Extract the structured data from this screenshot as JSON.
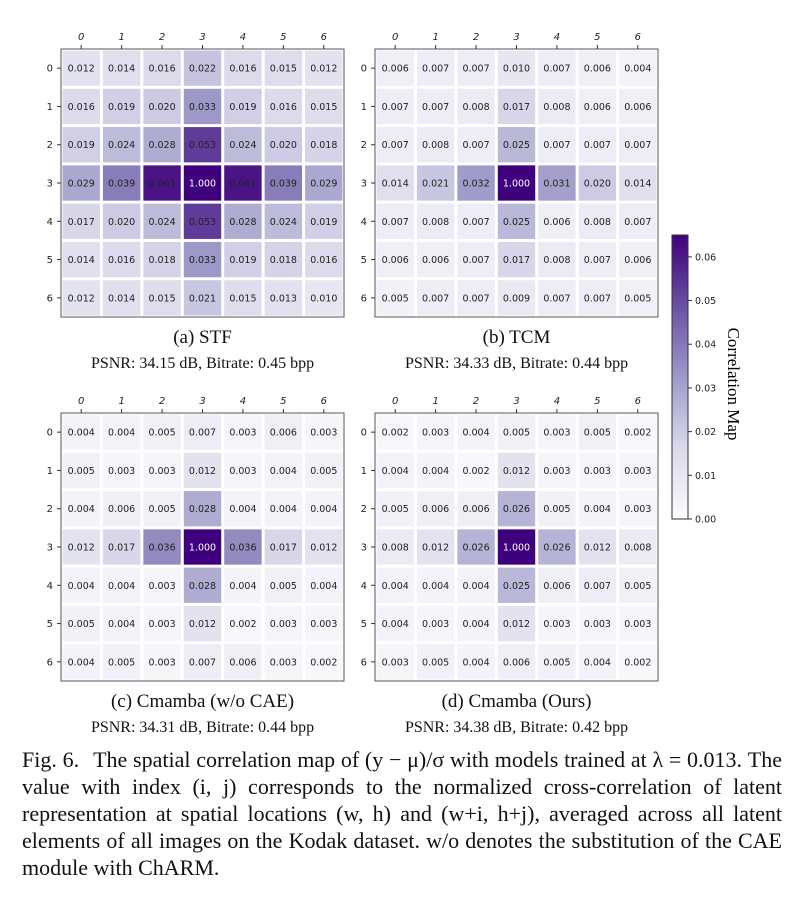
{
  "figure": {
    "caption_label": "Fig. 6.",
    "caption_text": "The spatial correlation map of (y − μ)/σ with models trained at λ = 0.013. The value with index (i, j) corresponds to the normalized cross-correlation of latent representation at spatial locations (w, h) and (w+i, h+j), averaged across all latent elements of all images on the Kodak dataset. w/o denotes the substitution of the CAE module with ChARM."
  },
  "colorbar": {
    "label": "Correlation Map",
    "ticks": [
      "0.00",
      "0.01",
      "0.02",
      "0.03",
      "0.04",
      "0.05",
      "0.06"
    ],
    "range": [
      0,
      0.065
    ],
    "colors": {
      "low": "#fcfbfd",
      "mid": "#9e9ac8",
      "high": "#3f007d"
    }
  },
  "chart_data": [
    {
      "type": "heatmap",
      "title": "(a) STF",
      "subtitle": "PSNR: 34.15 dB, Bitrate: 0.45 bpp",
      "x_ticks": [
        "0",
        "1",
        "2",
        "3",
        "4",
        "5",
        "6"
      ],
      "y_ticks": [
        "0",
        "1",
        "2",
        "3",
        "4",
        "5",
        "6"
      ],
      "values": [
        [
          "0.012",
          "0.014",
          "0.016",
          "0.022",
          "0.016",
          "0.015",
          "0.012"
        ],
        [
          "0.016",
          "0.019",
          "0.020",
          "0.033",
          "0.019",
          "0.016",
          "0.015"
        ],
        [
          "0.019",
          "0.024",
          "0.028",
          "0.053",
          "0.024",
          "0.020",
          "0.018"
        ],
        [
          "0.029",
          "0.039",
          "0.061",
          "1.000",
          "0.061",
          "0.039",
          "0.029"
        ],
        [
          "0.017",
          "0.020",
          "0.024",
          "0.053",
          "0.028",
          "0.024",
          "0.019"
        ],
        [
          "0.014",
          "0.016",
          "0.018",
          "0.033",
          "0.019",
          "0.018",
          "0.016"
        ],
        [
          "0.012",
          "0.014",
          "0.015",
          "0.021",
          "0.015",
          "0.013",
          "0.010"
        ]
      ]
    },
    {
      "type": "heatmap",
      "title": "(b) TCM",
      "subtitle": "PSNR: 34.33 dB, Bitrate: 0.44 bpp",
      "x_ticks": [
        "0",
        "1",
        "2",
        "3",
        "4",
        "5",
        "6"
      ],
      "y_ticks": [
        "0",
        "1",
        "2",
        "3",
        "4",
        "5",
        "6"
      ],
      "values": [
        [
          "0.006",
          "0.007",
          "0.007",
          "0.010",
          "0.007",
          "0.006",
          "0.004"
        ],
        [
          "0.007",
          "0.007",
          "0.008",
          "0.017",
          "0.008",
          "0.006",
          "0.006"
        ],
        [
          "0.007",
          "0.008",
          "0.007",
          "0.025",
          "0.007",
          "0.007",
          "0.007"
        ],
        [
          "0.014",
          "0.021",
          "0.032",
          "1.000",
          "0.031",
          "0.020",
          "0.014"
        ],
        [
          "0.007",
          "0.008",
          "0.007",
          "0.025",
          "0.006",
          "0.008",
          "0.007"
        ],
        [
          "0.006",
          "0.006",
          "0.007",
          "0.017",
          "0.008",
          "0.007",
          "0.006"
        ],
        [
          "0.005",
          "0.007",
          "0.007",
          "0.009",
          "0.007",
          "0.007",
          "0.005"
        ]
      ]
    },
    {
      "type": "heatmap",
      "title": "(c) Cmamba (w/o CAE)",
      "subtitle": "PSNR: 34.31 dB, Bitrate: 0.44 bpp",
      "x_ticks": [
        "0",
        "1",
        "2",
        "3",
        "4",
        "5",
        "6"
      ],
      "y_ticks": [
        "0",
        "1",
        "2",
        "3",
        "4",
        "5",
        "6"
      ],
      "values": [
        [
          "0.004",
          "0.004",
          "0.005",
          "0.007",
          "0.003",
          "0.006",
          "0.003"
        ],
        [
          "0.005",
          "0.003",
          "0.003",
          "0.012",
          "0.003",
          "0.004",
          "0.005"
        ],
        [
          "0.004",
          "0.006",
          "0.005",
          "0.028",
          "0.004",
          "0.004",
          "0.004"
        ],
        [
          "0.012",
          "0.017",
          "0.036",
          "1.000",
          "0.036",
          "0.017",
          "0.012"
        ],
        [
          "0.004",
          "0.004",
          "0.003",
          "0.028",
          "0.004",
          "0.005",
          "0.004"
        ],
        [
          "0.005",
          "0.004",
          "0.003",
          "0.012",
          "0.002",
          "0.003",
          "0.003"
        ],
        [
          "0.004",
          "0.005",
          "0.003",
          "0.007",
          "0.006",
          "0.003",
          "0.002"
        ]
      ]
    },
    {
      "type": "heatmap",
      "title": "(d) Cmamba (Ours)",
      "subtitle": "PSNR: 34.38 dB, Bitrate: 0.42 bpp",
      "x_ticks": [
        "0",
        "1",
        "2",
        "3",
        "4",
        "5",
        "6"
      ],
      "y_ticks": [
        "0",
        "1",
        "2",
        "3",
        "4",
        "5",
        "6"
      ],
      "values": [
        [
          "0.002",
          "0.003",
          "0.004",
          "0.005",
          "0.003",
          "0.005",
          "0.002"
        ],
        [
          "0.004",
          "0.004",
          "0.002",
          "0.012",
          "0.003",
          "0.003",
          "0.003"
        ],
        [
          "0.005",
          "0.006",
          "0.006",
          "0.026",
          "0.005",
          "0.004",
          "0.003"
        ],
        [
          "0.008",
          "0.012",
          "0.026",
          "1.000",
          "0.026",
          "0.012",
          "0.008"
        ],
        [
          "0.004",
          "0.004",
          "0.004",
          "0.025",
          "0.006",
          "0.007",
          "0.005"
        ],
        [
          "0.004",
          "0.003",
          "0.004",
          "0.012",
          "0.003",
          "0.003",
          "0.003"
        ],
        [
          "0.003",
          "0.005",
          "0.004",
          "0.006",
          "0.005",
          "0.004",
          "0.002"
        ]
      ]
    }
  ]
}
